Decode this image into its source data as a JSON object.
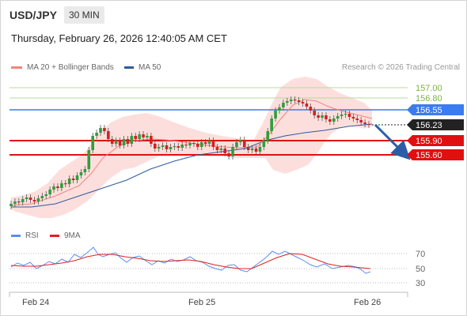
{
  "header": {
    "symbol": "USD/JPY",
    "timeframe": "30 MIN"
  },
  "timestamp": "Thursday, February 26, 2026 12:40:05 AM CET",
  "legend": {
    "ma20": {
      "label": "MA 20 + Bollinger Bands",
      "color": "#f4837d"
    },
    "ma50": {
      "label": "MA 50",
      "color": "#2c5aa0"
    }
  },
  "research": "Research © 2026 Trading Central",
  "price_levels": [
    {
      "label": "157.00",
      "value": 157.0,
      "kind": "target"
    },
    {
      "label": "156.80",
      "value": 156.8,
      "kind": "target"
    },
    {
      "label": "156.55",
      "value": 156.55,
      "kind": "pivot"
    },
    {
      "label": "156.23",
      "value": 156.23,
      "kind": "last"
    },
    {
      "label": "155.90",
      "value": 155.9,
      "kind": "support"
    },
    {
      "label": "155.60",
      "value": 155.6,
      "kind": "support"
    }
  ],
  "rsi_legend": {
    "rsi": "RSI",
    "ma9": "9MA",
    "rsi_color": "#5b8def",
    "ma9_color": "#e02020"
  },
  "rsi_levels": [
    "70",
    "50",
    "30"
  ],
  "x_axis": [
    "Feb 24",
    "Feb 25",
    "Feb 26"
  ],
  "colors": {
    "up": "#2e9e3c",
    "down": "#d62020",
    "pivot": "#3b7cf0",
    "target": "#b9d99b",
    "last": "#222222"
  }
}
